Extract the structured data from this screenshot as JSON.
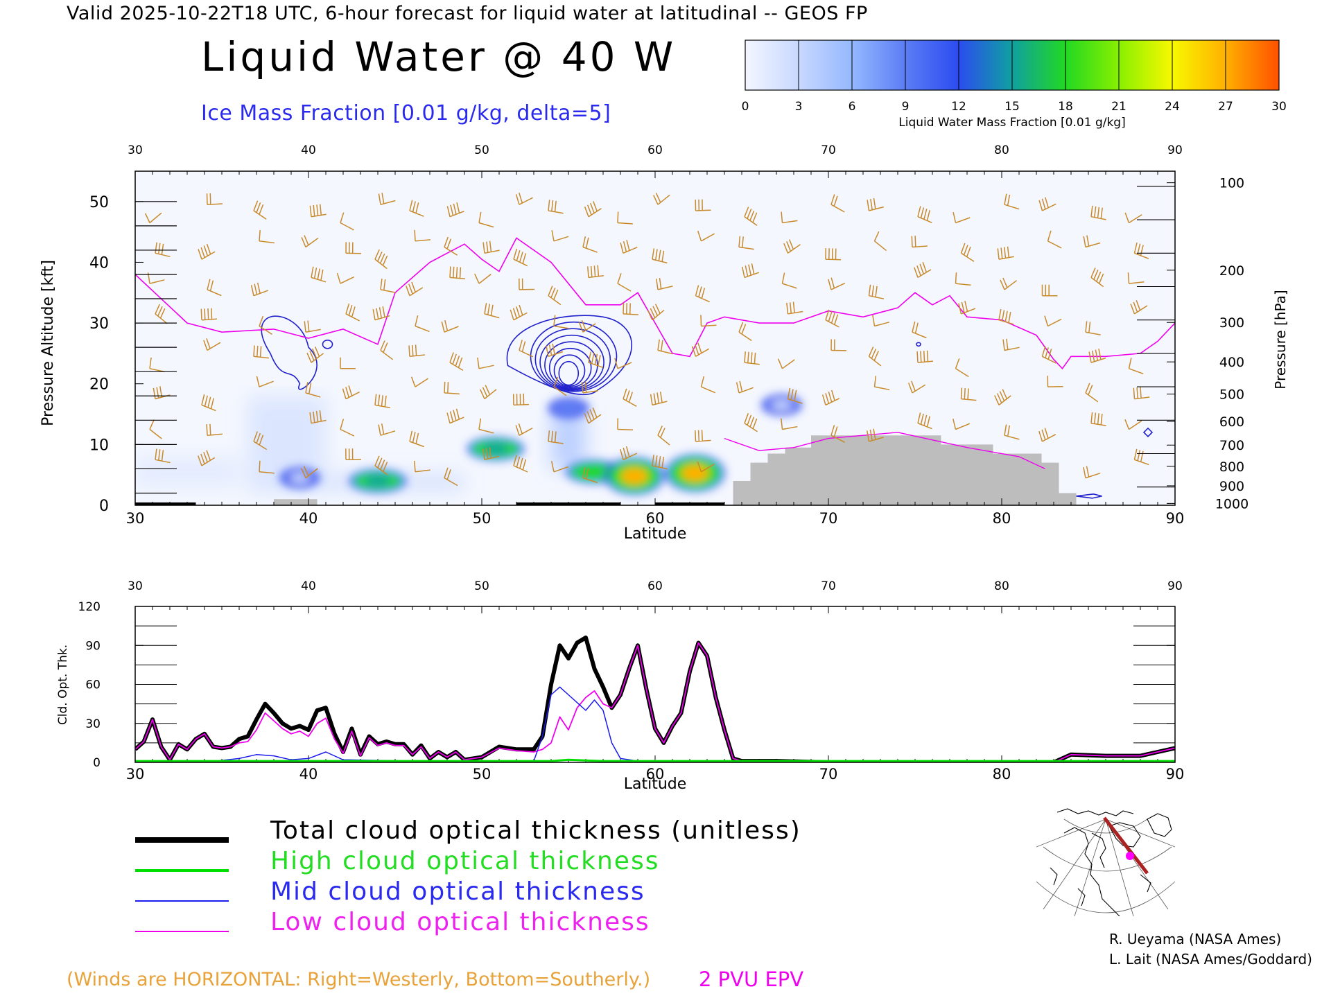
{
  "header": {
    "valid_line": "Valid 2025-10-22T18 UTC, 6-hour forecast for liquid water at latitudinal -- GEOS FP",
    "title": "Liquid Water @ 40 W",
    "subtitle": "Ice Mass Fraction [0.01 g/kg, delta=5]"
  },
  "colorbar": {
    "ticks": [
      "0",
      "3",
      "6",
      "9",
      "12",
      "15",
      "18",
      "21",
      "24",
      "27",
      "30"
    ],
    "label": "Liquid Water Mass Fraction [0.01 g/kg]",
    "colors": [
      "#f3f6ff",
      "#c8d8ff",
      "#95b8ff",
      "#5b7df5",
      "#2b4cf0",
      "#10a0a0",
      "#22d822",
      "#88f000",
      "#f8f800",
      "#ffb000",
      "#ff5000"
    ]
  },
  "chart_data": [
    {
      "type": "heatmap",
      "title": "Liquid Water @ 40 W",
      "xlabel": "Latitude",
      "ylabel": "Pressure Altitude [kft]",
      "y2label": "Pressure [hPa]",
      "xlim": [
        30,
        90
      ],
      "ylim": [
        0,
        55
      ],
      "x_ticks": [
        "30",
        "40",
        "50",
        "60",
        "70",
        "80",
        "90"
      ],
      "y_ticks": [
        "0",
        "10",
        "20",
        "30",
        "40",
        "50"
      ],
      "pressure_ticks": [
        {
          "label": "100",
          "kft": 53.1
        },
        {
          "label": "200",
          "kft": 38.7
        },
        {
          "label": "300",
          "kft": 30.1
        },
        {
          "label": "400",
          "kft": 23.6
        },
        {
          "label": "500",
          "kft": 18.3
        },
        {
          "label": "600",
          "kft": 13.8
        },
        {
          "label": "700",
          "kft": 9.9
        },
        {
          "label": "800",
          "kft": 6.4
        },
        {
          "label": "900",
          "kft": 3.2
        },
        {
          "label": "1000",
          "kft": 0.3
        }
      ],
      "liquid_water_blobs": [
        {
          "lat": 39.5,
          "kft": 4.5,
          "value": 3
        },
        {
          "lat": 44.0,
          "kft": 4.0,
          "value": 15
        },
        {
          "lat": 50.8,
          "kft": 9.3,
          "value": 15
        },
        {
          "lat": 56.5,
          "kft": 5.5,
          "value": 18
        },
        {
          "lat": 58.8,
          "kft": 4.8,
          "value": 27
        },
        {
          "lat": 62.3,
          "kft": 5.3,
          "value": 28
        },
        {
          "lat": 55.0,
          "kft": 16.0,
          "value": 9
        },
        {
          "lat": 67.3,
          "kft": 16.5,
          "value": 3
        }
      ],
      "epv_2pvu": [
        [
          30,
          38
        ],
        [
          33,
          30
        ],
        [
          35,
          28.5
        ],
        [
          38,
          29
        ],
        [
          40,
          27.5
        ],
        [
          42,
          29
        ],
        [
          44,
          26.5
        ],
        [
          45,
          35
        ],
        [
          47,
          40
        ],
        [
          48,
          41.5
        ],
        [
          49,
          43
        ],
        [
          50,
          40.5
        ],
        [
          51,
          38.5
        ],
        [
          52,
          44
        ],
        [
          54,
          40
        ],
        [
          56,
          33
        ],
        [
          58,
          33
        ],
        [
          59,
          35
        ],
        [
          60,
          30
        ],
        [
          61,
          25
        ],
        [
          62,
          24.5
        ],
        [
          63,
          30
        ],
        [
          64,
          31
        ],
        [
          66,
          30
        ],
        [
          68,
          30
        ],
        [
          70,
          32
        ],
        [
          72,
          31
        ],
        [
          74,
          32.5
        ],
        [
          75,
          35
        ],
        [
          76,
          33
        ],
        [
          77,
          34.5
        ],
        [
          78,
          31
        ],
        [
          80,
          30.5
        ],
        [
          82,
          28
        ],
        [
          83,
          24
        ],
        [
          83.5,
          22.5
        ],
        [
          84,
          24.5
        ],
        [
          86,
          24.5
        ],
        [
          88,
          25
        ],
        [
          89,
          27
        ],
        [
          90,
          30
        ]
      ],
      "ice_contour_level_kft": [
        [
          38,
          21
        ],
        [
          40,
          23
        ],
        [
          55,
          24
        ]
      ],
      "terrain_kft": [
        [
          64.5,
          4
        ],
        [
          65.5,
          7
        ],
        [
          66.5,
          8.5
        ],
        [
          67.5,
          9.5
        ],
        [
          69,
          11.5
        ],
        [
          76,
          11.5
        ],
        [
          76.5,
          10
        ],
        [
          78.5,
          10
        ],
        [
          79.5,
          8.5
        ],
        [
          81,
          8.5
        ],
        [
          82.3,
          7
        ],
        [
          83.3,
          2
        ],
        [
          84.3,
          0
        ]
      ],
      "wind_color": "#c88a2a"
    },
    {
      "type": "line",
      "xlabel": "Latitude",
      "ylabel": "Cld. Opt. Thk.",
      "xlim": [
        30,
        90
      ],
      "ylim": [
        0,
        120
      ],
      "x_ticks": [
        "30",
        "40",
        "50",
        "60",
        "70",
        "80",
        "90"
      ],
      "y_ticks": [
        "0",
        "30",
        "60",
        "90",
        "120"
      ],
      "series": [
        {
          "name": "Total cloud optical thickness (unitless)",
          "color": "#000000",
          "x": [
            30,
            30.5,
            31,
            31.5,
            32,
            32.5,
            33,
            33.5,
            34,
            34.5,
            35,
            35.5,
            36,
            36.5,
            37,
            37.5,
            38,
            38.5,
            39,
            39.5,
            40,
            40.5,
            41,
            41.5,
            42,
            42.5,
            43,
            43.5,
            44,
            44.5,
            45,
            45.5,
            46,
            46.5,
            47,
            47.5,
            48,
            48.5,
            49,
            50,
            51,
            52,
            53,
            53.5,
            54,
            54.5,
            55,
            55.5,
            56,
            56.5,
            57,
            57.5,
            58,
            58.5,
            59,
            59.5,
            60,
            60.5,
            61,
            61.5,
            62,
            62.5,
            63,
            63.5,
            64,
            64.5,
            65,
            67,
            70,
            75,
            80,
            83,
            84,
            86,
            88,
            89,
            90
          ],
          "y": [
            10,
            16,
            33,
            12,
            2,
            14,
            10,
            18,
            22,
            12,
            11,
            12,
            18,
            20,
            33,
            45,
            38,
            30,
            26,
            28,
            25,
            40,
            42,
            22,
            8,
            26,
            6,
            20,
            14,
            16,
            14,
            14,
            6,
            13,
            3,
            8,
            4,
            8,
            2,
            4,
            12,
            10,
            10,
            20,
            60,
            90,
            80,
            92,
            96,
            72,
            58,
            42,
            52,
            72,
            90,
            56,
            26,
            15,
            28,
            38,
            70,
            92,
            82,
            50,
            25,
            3,
            1,
            1,
            0,
            0,
            0,
            0,
            6,
            5,
            5,
            8,
            11
          ]
        },
        {
          "name": "High cloud optical thickness",
          "color": "#00dd00",
          "x": [
            30,
            40,
            45,
            50,
            54,
            55,
            56,
            57,
            60,
            63,
            65,
            90
          ],
          "y": [
            1,
            1,
            1,
            1,
            1,
            2,
            1.5,
            1,
            1,
            1,
            1,
            1
          ]
        },
        {
          "name": "Mid cloud optical thickness",
          "color": "#1a1aee",
          "x": [
            30,
            34,
            36,
            37,
            38,
            39,
            40,
            41,
            42,
            50,
            52,
            53,
            53.5,
            54,
            54.5,
            55,
            56,
            56.5,
            57,
            57.5,
            58,
            59,
            60,
            65,
            90
          ],
          "y": [
            0,
            0,
            3,
            6,
            5,
            2,
            3,
            8,
            2,
            0,
            1,
            1,
            20,
            52,
            58,
            52,
            40,
            48,
            40,
            15,
            3,
            1,
            0,
            0,
            0
          ]
        },
        {
          "name": "Low cloud optical thickness",
          "color": "#ee00ee",
          "x": [
            30,
            30.5,
            31,
            31.5,
            32,
            32.5,
            33,
            33.5,
            34,
            34.5,
            35,
            35.5,
            36,
            36.5,
            37,
            37.5,
            38,
            38.5,
            39,
            39.5,
            40,
            40.5,
            41,
            41.5,
            42,
            42.5,
            43,
            43.5,
            44,
            44.5,
            45,
            45.5,
            46,
            46.5,
            47,
            47.5,
            48,
            48.5,
            49,
            50,
            51,
            52,
            53,
            53.5,
            54,
            54.5,
            55,
            55.5,
            56,
            56.5,
            57,
            57.5,
            58,
            58.5,
            59,
            59.5,
            60,
            60.5,
            61,
            61.5,
            62,
            62.5,
            63,
            63.5,
            64,
            64.5,
            65,
            67,
            70,
            75,
            80,
            83,
            84,
            86,
            88,
            89,
            90
          ],
          "y": [
            10,
            16,
            33,
            12,
            2,
            14,
            10,
            18,
            22,
            12,
            11,
            12,
            15,
            16,
            25,
            38,
            32,
            26,
            22,
            24,
            20,
            30,
            34,
            18,
            7,
            24,
            5,
            19,
            13,
            15,
            13,
            13,
            6,
            12,
            3,
            8,
            4,
            8,
            2,
            4,
            11,
            9,
            8,
            10,
            15,
            35,
            25,
            42,
            50,
            55,
            45,
            42,
            52,
            72,
            90,
            56,
            26,
            15,
            28,
            38,
            70,
            92,
            82,
            50,
            25,
            3,
            1,
            1,
            0,
            0,
            0,
            0,
            6,
            5,
            5,
            8,
            11
          ]
        }
      ]
    }
  ],
  "legend": {
    "total": "Total cloud optical thickness (unitless)",
    "high": "High cloud optical thickness",
    "mid": "Mid cloud optical thickness",
    "low": "Low cloud optical thickness"
  },
  "credits": {
    "line1": "R. Ueyama (NASA Ames)",
    "line2": "L. Lait (NASA Ames/Goddard)"
  },
  "footer": {
    "winds": "(Winds are HORIZONTAL: Right=Westerly, Bottom=Southerly.)",
    "epv": "2 PVU EPV"
  }
}
